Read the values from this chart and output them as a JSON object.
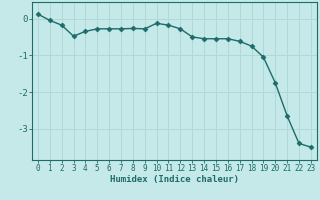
{
  "xlabel": "Humidex (Indice chaleur)",
  "x_values": [
    0,
    1,
    2,
    3,
    4,
    5,
    6,
    7,
    8,
    9,
    10,
    11,
    12,
    13,
    14,
    15,
    16,
    17,
    18,
    19,
    20,
    21,
    22,
    23
  ],
  "y_values": [
    0.12,
    -0.05,
    -0.18,
    -0.48,
    -0.35,
    -0.28,
    -0.28,
    -0.28,
    -0.27,
    -0.28,
    -0.13,
    -0.18,
    -0.28,
    -0.5,
    -0.55,
    -0.55,
    -0.55,
    -0.62,
    -0.75,
    -1.05,
    -1.75,
    -2.65,
    -3.4,
    -3.5
  ],
  "line_color": "#1e6b6b",
  "marker": "D",
  "marker_size": 2.5,
  "bg_color": "#c5e8e8",
  "grid_color": "#b0d8d8",
  "axis_color": "#1e6b6b",
  "tick_color": "#1e6b6b",
  "ylim": [
    -3.85,
    0.45
  ],
  "yticks": [
    0,
    -1,
    -2,
    -3
  ],
  "xlim": [
    -0.5,
    23.5
  ],
  "xlabel_fontsize": 6.5,
  "tick_fontsize": 5.5
}
